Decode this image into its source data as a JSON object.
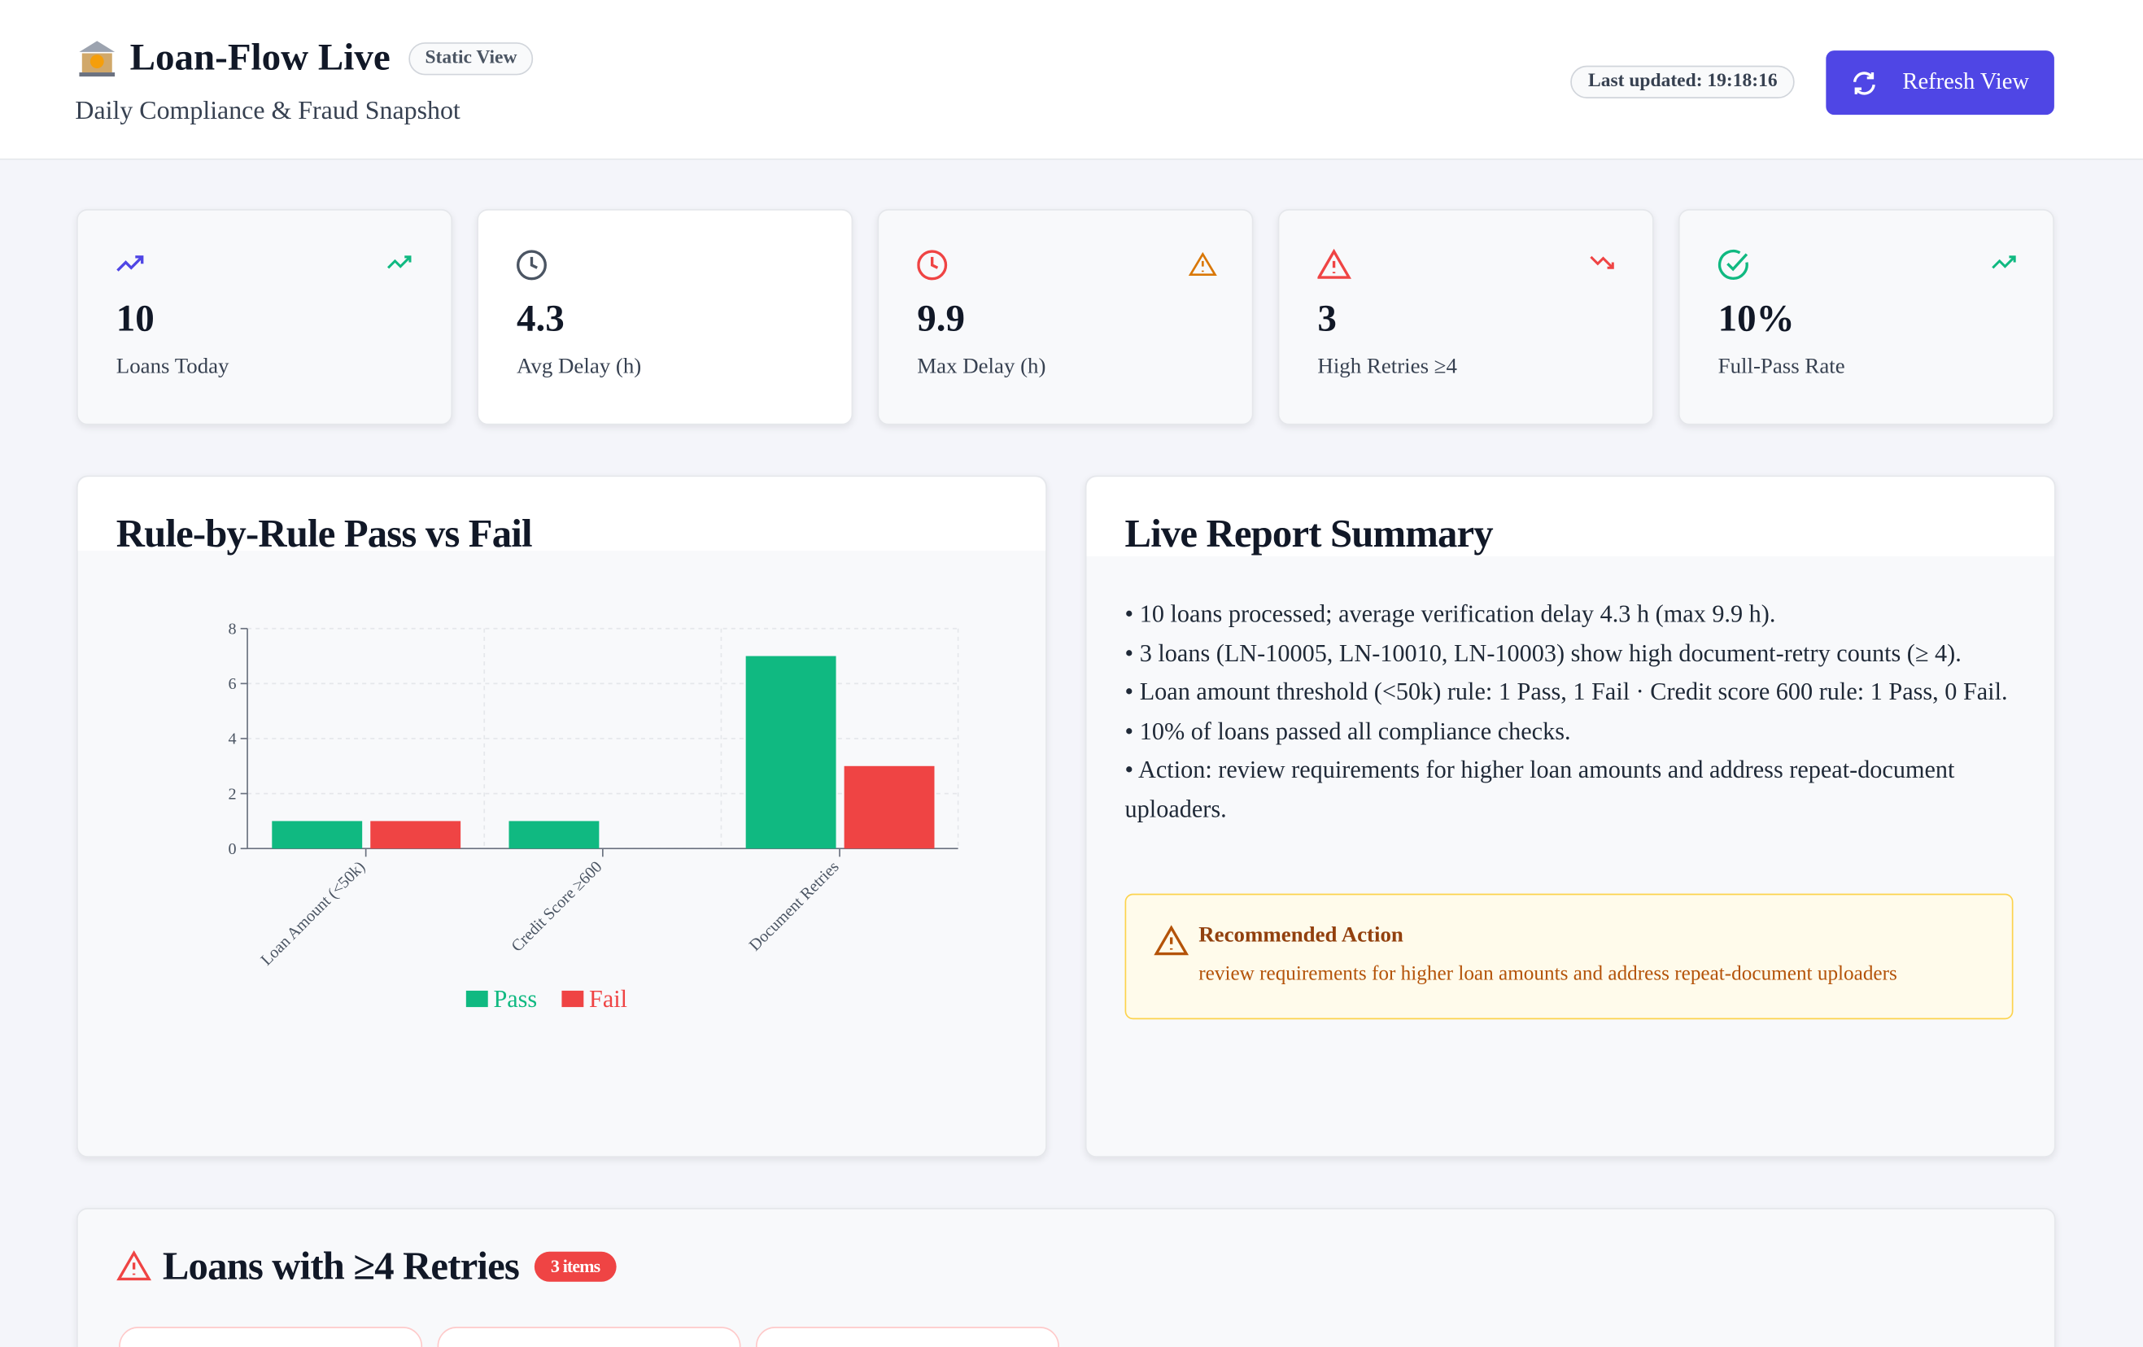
{
  "header": {
    "title": "Loan-Flow Live",
    "badge": "Static View",
    "subtitle": "Daily Compliance & Fraud Snapshot",
    "last_updated": "Last updated: 19:18:16",
    "refresh": "Refresh View"
  },
  "kpis": [
    {
      "value": "10",
      "label": "Loans Today"
    },
    {
      "value": "4.3",
      "label": "Avg Delay (h)"
    },
    {
      "value": "9.9",
      "label": "Max Delay (h)"
    },
    {
      "value": "3",
      "label": "High Retries ≥4"
    },
    {
      "value": "10%",
      "label": "Full-Pass Rate"
    }
  ],
  "chart_data": {
    "type": "bar",
    "title": "Rule-by-Rule Pass vs Fail",
    "categories": [
      "Loan Amount (<50k)",
      "Credit Score ≥600",
      "Document Retries"
    ],
    "series": [
      {
        "name": "Pass",
        "color": "#10b981",
        "values": [
          1,
          1,
          7
        ]
      },
      {
        "name": "Fail",
        "color": "#ef4444",
        "values": [
          1,
          0,
          3
        ]
      }
    ],
    "ylim": [
      0,
      8
    ],
    "yticks": [
      0,
      2,
      4,
      6,
      8
    ],
    "grid": true,
    "legend": "bottom"
  },
  "summary": {
    "title": "Live Report Summary",
    "lines": [
      "• 10 loans processed; average verification delay 4.3 h (max 9.9 h).",
      "• 3 loans (LN-10005, LN-10010, LN-10003) show high document-retry counts (≥ 4).",
      "• Loan amount threshold (<50k) rule: 1 Pass, 1 Fail · Credit score 600 rule: 1 Pass, 0 Fail.",
      "• 10% of loans passed all compliance checks.",
      "• Action: review requirements for higher loan amounts and address repeat-document uploaders."
    ],
    "action_title": "Recommended Action",
    "action_text": "review requirements for higher loan amounts and address repeat-document uploaders"
  },
  "retries": {
    "title": "Loans with ≥4 Retries",
    "badge": "3 items"
  }
}
